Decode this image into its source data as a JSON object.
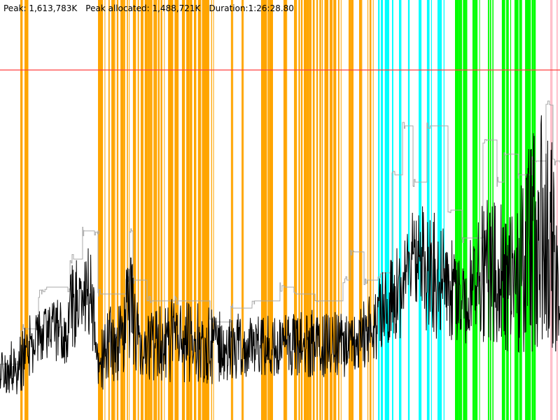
{
  "header": {
    "peak": "Peak: 1,613,783K",
    "peak_allocated": "Peak allocated: 1,488,721K",
    "duration": "Duration:1:26:28.80"
  },
  "chart_data": {
    "type": "line",
    "title": "",
    "xlabel": "",
    "ylabel": "",
    "x_unit": "seconds",
    "y_unit": "K",
    "xlim": [
      0,
      5188.8
    ],
    "ylim": [
      0,
      1613783
    ],
    "grid": false,
    "peak_line": {
      "value": 1613783,
      "color": "#FF4040"
    },
    "colors": {
      "black_line": "#000000",
      "gray_line": "#AAAAAA",
      "orange": "#FFA500",
      "cyan": "#00FFFF",
      "green": "#00FF00",
      "pink": "#FFC0CB"
    },
    "bands": [
      {
        "color": "orange",
        "ranges": [
          [
            188,
            214
          ],
          [
            227,
            259
          ],
          [
            908,
            973
          ],
          [
            1005,
            1103
          ],
          [
            1116,
            1200
          ],
          [
            1232,
            1524
          ],
          [
            1557,
            1654
          ],
          [
            1686,
            1978
          ],
          [
            2140,
            2160
          ],
          [
            2238,
            2257
          ],
          [
            2419,
            2530
          ],
          [
            2627,
            2659
          ],
          [
            2724,
            3159
          ],
          [
            3230,
            3275
          ],
          [
            3327,
            3353
          ],
          [
            3405,
            3457
          ]
        ]
      },
      {
        "color": "cyan",
        "ranges": [
          [
            3503,
            3606
          ],
          [
            3632,
            3652
          ],
          [
            3697,
            3716
          ],
          [
            3781,
            3807
          ],
          [
            3879,
            3905
          ],
          [
            3956,
            4002
          ],
          [
            4054,
            4119
          ]
        ]
      },
      {
        "color": "green",
        "ranges": [
          [
            4216,
            4333
          ],
          [
            4378,
            4443
          ],
          [
            4521,
            4573
          ],
          [
            4650,
            4735
          ],
          [
            4767,
            4832
          ],
          [
            4865,
            4981
          ]
        ]
      },
      {
        "color": "pink",
        "ranges": [
          [
            5098,
            5124
          ],
          [
            5156,
            5169
          ]
        ]
      }
    ],
    "black_series_envelope": {
      "x": [
        0,
        195,
        259,
        389,
        629,
        649,
        843,
        908,
        1167,
        1232,
        1297,
        1622,
        1946,
        2270,
        2594,
        2919,
        3243,
        3438,
        3632,
        3762,
        3892,
        4151,
        4281,
        4411,
        4540,
        4800,
        5059,
        5124,
        5189
      ],
      "low": [
        129000,
        97000,
        194000,
        258000,
        258000,
        323000,
        355000,
        129000,
        194000,
        226000,
        194000,
        161000,
        161000,
        194000,
        194000,
        194000,
        194000,
        258000,
        323000,
        387000,
        387000,
        323000,
        323000,
        387000,
        323000,
        290000,
        323000,
        226000,
        420000
      ],
      "high": [
        323000,
        420000,
        484000,
        516000,
        581000,
        710000,
        807000,
        387000,
        710000,
        775000,
        452000,
        581000,
        516000,
        484000,
        484000,
        516000,
        484000,
        581000,
        775000,
        904000,
        1033000,
        904000,
        710000,
        968000,
        1033000,
        1130000,
        1485000,
        1291000,
        549000
      ]
    },
    "gray_series": {
      "x": [
        0,
        195,
        357,
        389,
        629,
        649,
        765,
        876,
        908,
        1167,
        1200,
        1232,
        1362,
        1622,
        1946,
        2140,
        2335,
        2594,
        2724,
        2919,
        3178,
        3243,
        3373,
        3503,
        3632,
        3730,
        3827,
        3956,
        4151,
        4281,
        4475,
        4605,
        4670,
        4800,
        4929,
        5059,
        5124,
        5189
      ],
      "y": [
        258000,
        420000,
        581000,
        613000,
        613000,
        742000,
        872000,
        872000,
        581000,
        645000,
        872000,
        645000,
        549000,
        549000,
        452000,
        516000,
        549000,
        613000,
        581000,
        549000,
        645000,
        775000,
        645000,
        678000,
        1130000,
        1356000,
        1097000,
        1356000,
        968000,
        839000,
        1291000,
        1097000,
        1226000,
        1130000,
        1194000,
        1452000,
        1194000,
        1194000
      ]
    }
  }
}
